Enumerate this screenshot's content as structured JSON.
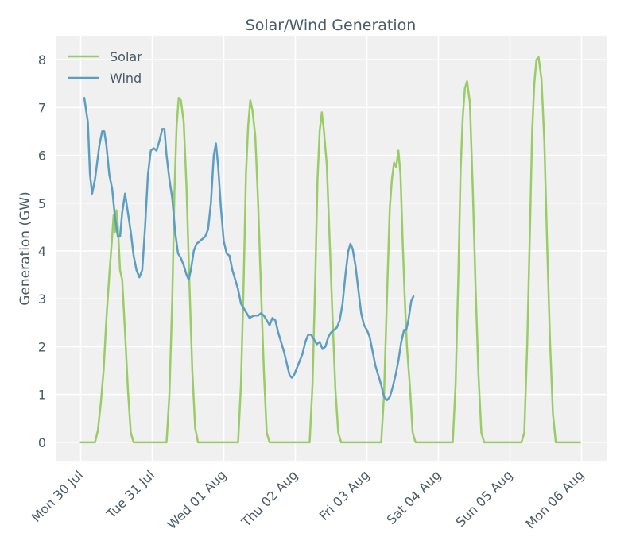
{
  "chart_data": {
    "type": "line",
    "title": "Solar/Wind Generation",
    "xlabel": "",
    "ylabel": "Generation (GW)",
    "ylim": [
      -0.4,
      8.5
    ],
    "yticks": [
      0,
      1,
      2,
      3,
      4,
      5,
      6,
      7,
      8
    ],
    "x_unit": "days since Mon 30 Jul 00:00",
    "xlim": [
      -0.35,
      7.35
    ],
    "xticks": [
      0,
      1,
      2,
      3,
      4,
      5,
      6,
      7
    ],
    "xtick_labels": [
      "Mon 30 Jul",
      "Tue 31 Jul",
      "Wed 01 Aug",
      "Thu 02 Aug",
      "Fri 03 Aug",
      "Sat 04 Aug",
      "Sun 05 Aug",
      "Mon 06 Aug"
    ],
    "grid": true,
    "legend_position": "top-left",
    "series": [
      {
        "name": "Solar",
        "color": "#99cc66",
        "points": [
          [
            0.0,
            0.0
          ],
          [
            0.2,
            0.0
          ],
          [
            0.24,
            0.25
          ],
          [
            0.28,
            0.8
          ],
          [
            0.32,
            1.5
          ],
          [
            0.36,
            2.6
          ],
          [
            0.4,
            3.5
          ],
          [
            0.44,
            4.3
          ],
          [
            0.46,
            4.75
          ],
          [
            0.48,
            4.4
          ],
          [
            0.5,
            4.85
          ],
          [
            0.52,
            4.5
          ],
          [
            0.55,
            3.6
          ],
          [
            0.58,
            3.4
          ],
          [
            0.62,
            2.3
          ],
          [
            0.66,
            1.1
          ],
          [
            0.7,
            0.2
          ],
          [
            0.74,
            0.0
          ],
          [
            1.0,
            0.0
          ],
          [
            1.2,
            0.0
          ],
          [
            1.24,
            1.0
          ],
          [
            1.28,
            3.0
          ],
          [
            1.31,
            5.2
          ],
          [
            1.34,
            6.6
          ],
          [
            1.37,
            7.2
          ],
          [
            1.4,
            7.15
          ],
          [
            1.44,
            6.7
          ],
          [
            1.48,
            5.3
          ],
          [
            1.52,
            3.3
          ],
          [
            1.56,
            1.5
          ],
          [
            1.6,
            0.3
          ],
          [
            1.64,
            0.0
          ],
          [
            2.0,
            0.0
          ],
          [
            2.2,
            0.0
          ],
          [
            2.24,
            1.2
          ],
          [
            2.28,
            3.5
          ],
          [
            2.31,
            5.6
          ],
          [
            2.34,
            6.6
          ],
          [
            2.37,
            7.15
          ],
          [
            2.4,
            6.95
          ],
          [
            2.44,
            6.4
          ],
          [
            2.48,
            5.0
          ],
          [
            2.52,
            3.2
          ],
          [
            2.56,
            1.5
          ],
          [
            2.6,
            0.2
          ],
          [
            2.64,
            0.0
          ],
          [
            3.0,
            0.0
          ],
          [
            3.2,
            0.0
          ],
          [
            3.24,
            1.2
          ],
          [
            3.28,
            3.5
          ],
          [
            3.31,
            5.5
          ],
          [
            3.34,
            6.5
          ],
          [
            3.37,
            6.9
          ],
          [
            3.4,
            6.5
          ],
          [
            3.44,
            5.8
          ],
          [
            3.48,
            4.2
          ],
          [
            3.52,
            2.6
          ],
          [
            3.56,
            1.1
          ],
          [
            3.6,
            0.2
          ],
          [
            3.64,
            0.0
          ],
          [
            4.0,
            0.0
          ],
          [
            4.2,
            0.0
          ],
          [
            4.24,
            1.0
          ],
          [
            4.28,
            3.0
          ],
          [
            4.32,
            4.9
          ],
          [
            4.35,
            5.5
          ],
          [
            4.38,
            5.85
          ],
          [
            4.41,
            5.75
          ],
          [
            4.44,
            6.1
          ],
          [
            4.47,
            5.6
          ],
          [
            4.5,
            4.2
          ],
          [
            4.53,
            3.0
          ],
          [
            4.56,
            2.0
          ],
          [
            4.6,
            1.2
          ],
          [
            4.64,
            0.2
          ],
          [
            4.68,
            0.0
          ],
          [
            5.0,
            0.0
          ],
          [
            5.2,
            0.0
          ],
          [
            5.24,
            1.2
          ],
          [
            5.28,
            3.6
          ],
          [
            5.31,
            5.7
          ],
          [
            5.34,
            6.8
          ],
          [
            5.37,
            7.4
          ],
          [
            5.4,
            7.55
          ],
          [
            5.44,
            7.1
          ],
          [
            5.48,
            5.3
          ],
          [
            5.52,
            3.2
          ],
          [
            5.56,
            1.4
          ],
          [
            5.6,
            0.2
          ],
          [
            5.64,
            0.0
          ],
          [
            6.0,
            0.0
          ],
          [
            6.16,
            0.0
          ],
          [
            6.2,
            0.2
          ],
          [
            6.24,
            2.0
          ],
          [
            6.28,
            4.5
          ],
          [
            6.31,
            6.5
          ],
          [
            6.34,
            7.5
          ],
          [
            6.37,
            8.0
          ],
          [
            6.4,
            8.05
          ],
          [
            6.44,
            7.6
          ],
          [
            6.48,
            6.3
          ],
          [
            6.52,
            4.1
          ],
          [
            6.56,
            2.1
          ],
          [
            6.6,
            0.6
          ],
          [
            6.64,
            0.0
          ],
          [
            6.98,
            0.0
          ]
        ]
      },
      {
        "name": "Wind",
        "color": "#5b9ec2",
        "points": [
          [
            0.05,
            7.2
          ],
          [
            0.1,
            6.7
          ],
          [
            0.13,
            5.6
          ],
          [
            0.16,
            5.2
          ],
          [
            0.2,
            5.5
          ],
          [
            0.26,
            6.2
          ],
          [
            0.3,
            6.5
          ],
          [
            0.33,
            6.5
          ],
          [
            0.36,
            6.2
          ],
          [
            0.4,
            5.6
          ],
          [
            0.44,
            5.3
          ],
          [
            0.48,
            4.7
          ],
          [
            0.52,
            4.3
          ],
          [
            0.55,
            4.3
          ],
          [
            0.58,
            4.8
          ],
          [
            0.62,
            5.2
          ],
          [
            0.66,
            4.8
          ],
          [
            0.7,
            4.4
          ],
          [
            0.74,
            3.9
          ],
          [
            0.78,
            3.6
          ],
          [
            0.82,
            3.45
          ],
          [
            0.86,
            3.6
          ],
          [
            0.9,
            4.5
          ],
          [
            0.94,
            5.6
          ],
          [
            0.98,
            6.1
          ],
          [
            1.02,
            6.15
          ],
          [
            1.06,
            6.1
          ],
          [
            1.1,
            6.3
          ],
          [
            1.14,
            6.55
          ],
          [
            1.17,
            6.55
          ],
          [
            1.2,
            6.0
          ],
          [
            1.24,
            5.5
          ],
          [
            1.28,
            5.1
          ],
          [
            1.32,
            4.4
          ],
          [
            1.36,
            3.95
          ],
          [
            1.4,
            3.85
          ],
          [
            1.44,
            3.7
          ],
          [
            1.48,
            3.5
          ],
          [
            1.51,
            3.4
          ],
          [
            1.54,
            3.6
          ],
          [
            1.58,
            4.0
          ],
          [
            1.62,
            4.15
          ],
          [
            1.66,
            4.2
          ],
          [
            1.7,
            4.25
          ],
          [
            1.74,
            4.3
          ],
          [
            1.78,
            4.45
          ],
          [
            1.82,
            5.0
          ],
          [
            1.86,
            6.0
          ],
          [
            1.89,
            6.25
          ],
          [
            1.92,
            5.8
          ],
          [
            1.96,
            4.9
          ],
          [
            2.0,
            4.2
          ],
          [
            2.04,
            3.95
          ],
          [
            2.08,
            3.9
          ],
          [
            2.12,
            3.6
          ],
          [
            2.16,
            3.4
          ],
          [
            2.2,
            3.2
          ],
          [
            2.24,
            2.9
          ],
          [
            2.28,
            2.8
          ],
          [
            2.32,
            2.7
          ],
          [
            2.36,
            2.6
          ],
          [
            2.42,
            2.65
          ],
          [
            2.48,
            2.65
          ],
          [
            2.52,
            2.7
          ],
          [
            2.56,
            2.65
          ],
          [
            2.6,
            2.55
          ],
          [
            2.64,
            2.45
          ],
          [
            2.68,
            2.6
          ],
          [
            2.72,
            2.55
          ],
          [
            2.76,
            2.3
          ],
          [
            2.8,
            2.1
          ],
          [
            2.84,
            1.9
          ],
          [
            2.88,
            1.65
          ],
          [
            2.92,
            1.4
          ],
          [
            2.95,
            1.35
          ],
          [
            2.98,
            1.4
          ],
          [
            3.02,
            1.55
          ],
          [
            3.06,
            1.7
          ],
          [
            3.1,
            1.85
          ],
          [
            3.14,
            2.1
          ],
          [
            3.18,
            2.25
          ],
          [
            3.22,
            2.25
          ],
          [
            3.26,
            2.15
          ],
          [
            3.3,
            2.05
          ],
          [
            3.34,
            2.1
          ],
          [
            3.38,
            1.95
          ],
          [
            3.42,
            2.0
          ],
          [
            3.46,
            2.2
          ],
          [
            3.5,
            2.3
          ],
          [
            3.54,
            2.35
          ],
          [
            3.58,
            2.4
          ],
          [
            3.62,
            2.55
          ],
          [
            3.66,
            2.9
          ],
          [
            3.7,
            3.5
          ],
          [
            3.74,
            4.0
          ],
          [
            3.77,
            4.15
          ],
          [
            3.8,
            4.05
          ],
          [
            3.84,
            3.7
          ],
          [
            3.88,
            3.2
          ],
          [
            3.92,
            2.7
          ],
          [
            3.96,
            2.45
          ],
          [
            4.0,
            2.35
          ],
          [
            4.04,
            2.2
          ],
          [
            4.08,
            1.9
          ],
          [
            4.12,
            1.6
          ],
          [
            4.16,
            1.4
          ],
          [
            4.2,
            1.2
          ],
          [
            4.24,
            0.95
          ],
          [
            4.28,
            0.88
          ],
          [
            4.32,
            0.95
          ],
          [
            4.36,
            1.15
          ],
          [
            4.4,
            1.4
          ],
          [
            4.44,
            1.7
          ],
          [
            4.48,
            2.1
          ],
          [
            4.52,
            2.35
          ],
          [
            4.55,
            2.35
          ],
          [
            4.58,
            2.55
          ],
          [
            4.62,
            2.95
          ],
          [
            4.65,
            3.05
          ]
        ]
      }
    ]
  }
}
